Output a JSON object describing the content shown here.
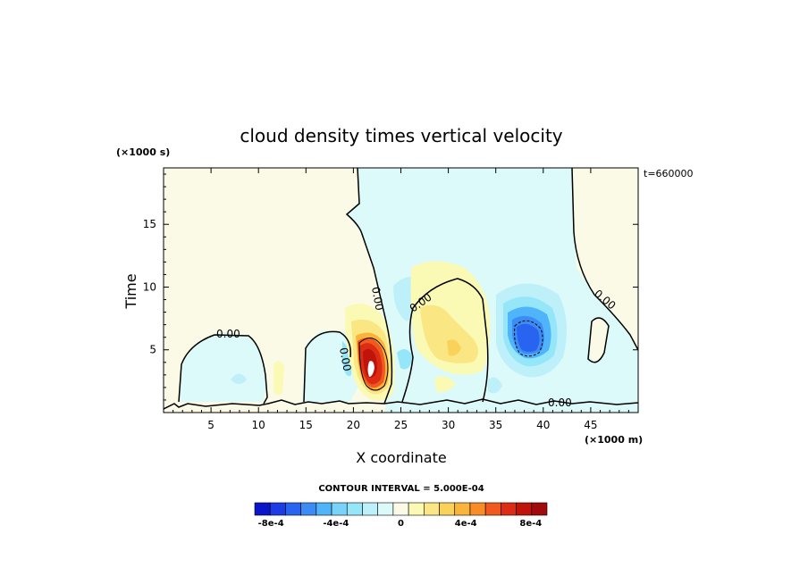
{
  "chart_data": {
    "type": "heatmap",
    "title": "cloud density times vertical velocity",
    "xlabel": "X coordinate",
    "ylabel": "Time",
    "x_unit": "(×1000 m)",
    "y_unit": "(×1000 s)",
    "corner_label": "t=660000",
    "xlim": [
      0,
      50
    ],
    "ylim": [
      0,
      19.5
    ],
    "x_ticks": [
      5,
      10,
      15,
      20,
      25,
      30,
      35,
      40,
      45
    ],
    "y_ticks": [
      5,
      10,
      15
    ],
    "contour_interval_text": "CONTOUR INTERVAL = 5.000E-04",
    "zero_contour_label": "0.00",
    "colorbar": {
      "range": [
        -0.0009,
        0.0009
      ],
      "colors": [
        "#0a14c8",
        "#1e3ce6",
        "#2864f0",
        "#3c8cf5",
        "#50b4fa",
        "#78d2fa",
        "#96e6fa",
        "#bef0fa",
        "#dcfafa",
        "#fafae6",
        "#fafab4",
        "#fae682",
        "#fad25a",
        "#fab43c",
        "#fa8c28",
        "#f05a1e",
        "#dc2d14",
        "#be140a",
        "#a00a0a"
      ],
      "tick_labels": [
        "-8e-4",
        "-4e-4",
        "0",
        "4e-4",
        "8e-4"
      ],
      "tick_values": [
        -0.0008,
        -0.0004,
        0,
        0.0004,
        0.0008
      ]
    }
  }
}
